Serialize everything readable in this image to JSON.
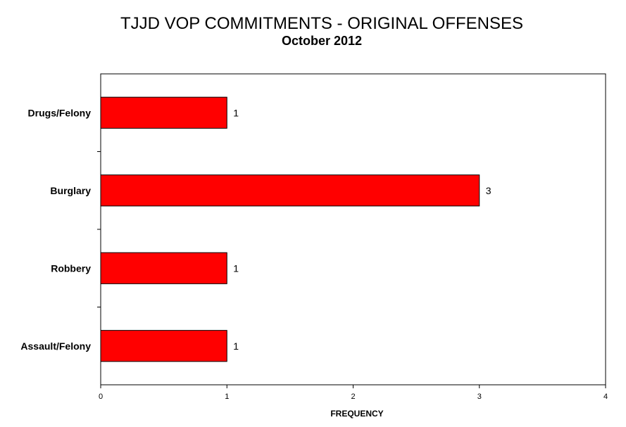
{
  "chart_data": {
    "type": "bar",
    "orientation": "horizontal",
    "title": "TJJD VOP COMMITMENTS  - ORIGINAL OFFENSES",
    "subtitle": "October 2012",
    "categories": [
      "Drugs/Felony",
      "Burglary",
      "Robbery",
      "Assault/Felony"
    ],
    "values": [
      1,
      3,
      1,
      1
    ],
    "data_labels": [
      "1",
      "3",
      "1",
      "1"
    ],
    "xlabel": "FREQUENCY",
    "ylabel": "",
    "xlim": [
      0,
      4
    ],
    "x_ticks": [
      "0",
      "1",
      "2",
      "3",
      "4"
    ],
    "grid": false,
    "bar_color": "#ff0000",
    "bar_edge_color": "#000000"
  }
}
